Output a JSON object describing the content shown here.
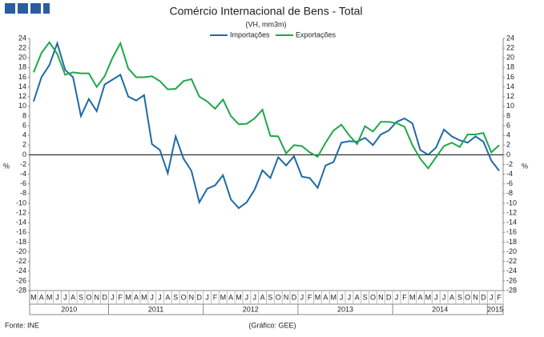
{
  "chart_data": {
    "type": "line",
    "title": "Comércio Internacional de Bens - Total",
    "subtitle": "(VH, mm3m)",
    "y_label": "%",
    "source": "Fonte: INE",
    "credit": "(Gráfico: GEE)",
    "categories": [
      "M",
      "A",
      "M",
      "J",
      "J",
      "A",
      "S",
      "O",
      "N",
      "D",
      "J",
      "F",
      "M",
      "A",
      "M",
      "J",
      "J",
      "A",
      "S",
      "O",
      "N",
      "D",
      "J",
      "F",
      "M",
      "A",
      "M",
      "J",
      "J",
      "A",
      "S",
      "O",
      "N",
      "D",
      "J",
      "F",
      "M",
      "A",
      "M",
      "J",
      "J",
      "A",
      "S",
      "O",
      "N",
      "D",
      "J",
      "F",
      "M",
      "A",
      "M",
      "J",
      "J",
      "A",
      "S",
      "O",
      "N",
      "D",
      "J",
      "F"
    ],
    "year_labels": [
      "2010",
      "2011",
      "2012",
      "2013",
      "2014",
      "2015"
    ],
    "series": [
      {
        "name": "Importações",
        "color": "#1f6aa5",
        "values": [
          11,
          16,
          18.5,
          23,
          17.5,
          16,
          8,
          11.5,
          9,
          14.5,
          15.5,
          16.5,
          12,
          11.2,
          12.3,
          2.2,
          1,
          -3.8,
          3.8,
          -0.8,
          -3.3,
          -9.8,
          -7,
          -6.3,
          -4.2,
          -9.2,
          -11,
          -9.8,
          -7.2,
          -3.2,
          -4.8,
          -0.5,
          -2.2,
          -0.3,
          -4.5,
          -4.8,
          -6.8,
          -2.2,
          -1.5,
          2.5,
          2.8,
          2.7,
          3.5,
          2,
          4.2,
          5,
          6.8,
          7.5,
          6.5,
          1,
          0,
          1.5,
          5.2,
          3.8,
          3,
          2.5,
          3.8,
          2.7,
          -1.2,
          -3.3
        ]
      },
      {
        "name": "Exportações",
        "color": "#1fa84a",
        "values": [
          17,
          21,
          23.2,
          20.8,
          16.5,
          17,
          16.8,
          16.8,
          14,
          16.2,
          20,
          23,
          17.8,
          16,
          16,
          16.2,
          15.2,
          13.5,
          13.6,
          15.2,
          15.6,
          12,
          11,
          9.5,
          11.4,
          8,
          6.3,
          6.4,
          7.5,
          9.3,
          3.9,
          3.8,
          0.3,
          2,
          1.8,
          0.5,
          -0.4,
          2.5,
          5,
          6.2,
          4,
          2.2,
          5.9,
          4.8,
          6.8,
          6.8,
          6.5,
          5.8,
          2,
          -0.8,
          -2.8,
          -0.5,
          1.8,
          2.5,
          1.6,
          4.2,
          4.2,
          4.5,
          0.5,
          2
        ]
      }
    ],
    "ylim": [
      -28,
      24
    ],
    "yticks": [
      -28,
      -26,
      -24,
      -22,
      -20,
      -18,
      -16,
      -14,
      -12,
      -10,
      -8,
      -6,
      -4,
      -2,
      0,
      2,
      4,
      6,
      8,
      10,
      12,
      14,
      16,
      18,
      20,
      22,
      24
    ]
  }
}
